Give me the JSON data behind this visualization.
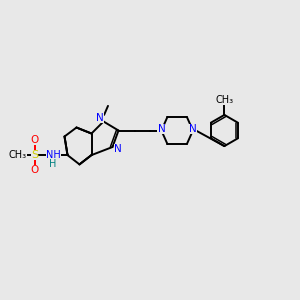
{
  "bg_color": "#e8e8e8",
  "bond_color": "#000000",
  "n_color": "#0000ff",
  "s_color": "#cccc00",
  "o_color": "#ff0000",
  "h_color": "#008080",
  "figsize": [
    3.0,
    3.0
  ],
  "dpi": 100,
  "xlim": [
    0,
    10
  ],
  "ylim": [
    0,
    10
  ]
}
